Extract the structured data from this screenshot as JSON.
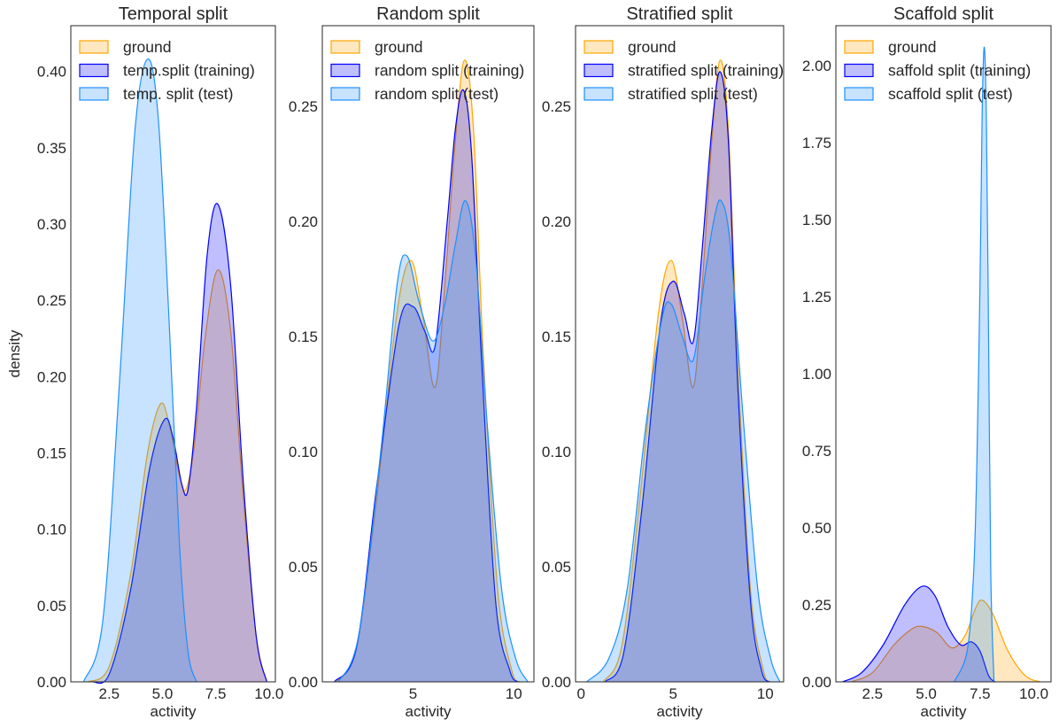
{
  "chart_data": [
    {
      "type": "area",
      "title": "Temporal split",
      "xlabel": "activity",
      "ylabel": "density",
      "xlim": [
        0.7,
        10.3
      ],
      "ylim": [
        0,
        0.43
      ],
      "xticks": [
        2.5,
        5.0,
        7.5,
        10.0
      ],
      "xtick_labels": [
        "2.5",
        "5.0",
        "7.5",
        "10.0"
      ],
      "yticks": [
        0,
        0.05,
        0.1,
        0.15,
        0.2,
        0.25,
        0.3,
        0.35,
        0.4
      ],
      "ytick_labels": [
        "0.00",
        "0.05",
        "0.10",
        "0.15",
        "0.20",
        "0.25",
        "0.30",
        "0.35",
        "0.40"
      ],
      "legend": "top-left",
      "series": [
        {
          "name": "ground",
          "color": "#FFA500",
          "points": [
            [
              1.5,
              0
            ],
            [
              2.5,
              0.01
            ],
            [
              3.5,
              0.07
            ],
            [
              4.3,
              0.15
            ],
            [
              4.9,
              0.182
            ],
            [
              5.3,
              0.17
            ],
            [
              5.8,
              0.135
            ],
            [
              6.1,
              0.126
            ],
            [
              6.5,
              0.155
            ],
            [
              7.0,
              0.225
            ],
            [
              7.6,
              0.27
            ],
            [
              8.2,
              0.23
            ],
            [
              8.8,
              0.12
            ],
            [
              9.4,
              0.03
            ],
            [
              9.9,
              0
            ]
          ]
        },
        {
          "name": "temp.split (training)",
          "color": "#0000FF",
          "points": [
            [
              1.7,
              0
            ],
            [
              2.5,
              0.005
            ],
            [
              3.5,
              0.06
            ],
            [
              4.4,
              0.14
            ],
            [
              5.1,
              0.172
            ],
            [
              5.5,
              0.16
            ],
            [
              5.9,
              0.13
            ],
            [
              6.2,
              0.126
            ],
            [
              6.6,
              0.18
            ],
            [
              7.1,
              0.28
            ],
            [
              7.6,
              0.313
            ],
            [
              8.2,
              0.26
            ],
            [
              8.8,
              0.13
            ],
            [
              9.4,
              0.03
            ],
            [
              9.9,
              0
            ]
          ]
        },
        {
          "name": "temp. split (test)",
          "color": "#1E90FF",
          "points": [
            [
              1.3,
              0
            ],
            [
              2.2,
              0.04
            ],
            [
              3.0,
              0.2
            ],
            [
              3.7,
              0.36
            ],
            [
              4.3,
              0.408
            ],
            [
              4.8,
              0.37
            ],
            [
              5.3,
              0.24
            ],
            [
              5.8,
              0.09
            ],
            [
              6.2,
              0.02
            ],
            [
              6.6,
              0
            ]
          ]
        }
      ]
    },
    {
      "type": "area",
      "title": "Random split",
      "xlabel": "activity",
      "xlim": [
        0.5,
        11.0
      ],
      "ylim": [
        0,
        0.285
      ],
      "xticks": [
        5,
        10
      ],
      "xtick_labels": [
        "5",
        "10"
      ],
      "yticks": [
        0,
        0.05,
        0.1,
        0.15,
        0.2,
        0.25
      ],
      "ytick_labels": [
        "0.00",
        "0.05",
        "0.10",
        "0.15",
        "0.20",
        "0.25"
      ],
      "legend": "top-left",
      "series": [
        {
          "name": "ground",
          "color": "#FFA500",
          "points": [
            [
              1.2,
              0
            ],
            [
              2.2,
              0.015
            ],
            [
              3.2,
              0.08
            ],
            [
              4.2,
              0.16
            ],
            [
              4.9,
              0.183
            ],
            [
              5.5,
              0.158
            ],
            [
              6.1,
              0.128
            ],
            [
              6.6,
              0.175
            ],
            [
              7.1,
              0.235
            ],
            [
              7.55,
              0.27
            ],
            [
              8.0,
              0.24
            ],
            [
              8.5,
              0.14
            ],
            [
              9.2,
              0.04
            ],
            [
              9.9,
              0.005
            ],
            [
              10.3,
              0
            ]
          ]
        },
        {
          "name": "random split (training)",
          "color": "#0000FF",
          "points": [
            [
              1.1,
              0
            ],
            [
              2.2,
              0.015
            ],
            [
              3.2,
              0.085
            ],
            [
              4.3,
              0.155
            ],
            [
              5.0,
              0.163
            ],
            [
              5.6,
              0.152
            ],
            [
              6.1,
              0.146
            ],
            [
              6.7,
              0.2
            ],
            [
              7.1,
              0.24
            ],
            [
              7.5,
              0.257
            ],
            [
              7.9,
              0.23
            ],
            [
              8.4,
              0.14
            ],
            [
              9.1,
              0.035
            ],
            [
              9.8,
              0.005
            ],
            [
              10.2,
              0
            ]
          ]
        },
        {
          "name": "random split (test)",
          "color": "#1E90FF",
          "points": [
            [
              1.3,
              0
            ],
            [
              2.3,
              0.02
            ],
            [
              3.4,
              0.1
            ],
            [
              4.2,
              0.172
            ],
            [
              4.7,
              0.185
            ],
            [
              5.3,
              0.165
            ],
            [
              6.0,
              0.148
            ],
            [
              6.6,
              0.165
            ],
            [
              7.1,
              0.19
            ],
            [
              7.6,
              0.209
            ],
            [
              8.1,
              0.185
            ],
            [
              8.7,
              0.11
            ],
            [
              9.4,
              0.04
            ],
            [
              10.1,
              0.01
            ],
            [
              10.7,
              0
            ]
          ]
        }
      ]
    },
    {
      "type": "area",
      "title": "Stratified split",
      "xlabel": "activity",
      "xlim": [
        -0.3,
        11.0
      ],
      "ylim": [
        0,
        0.285
      ],
      "xticks": [
        0,
        5,
        10
      ],
      "xtick_labels": [
        "0",
        "5",
        "10"
      ],
      "yticks": [
        0,
        0.05,
        0.1,
        0.15,
        0.2,
        0.25
      ],
      "ytick_labels": [
        "0.00",
        "0.05",
        "0.10",
        "0.15",
        "0.20",
        "0.25"
      ],
      "legend": "top-left",
      "series": [
        {
          "name": "ground",
          "color": "#FFA500",
          "points": [
            [
              1.2,
              0
            ],
            [
              2.2,
              0.015
            ],
            [
              3.2,
              0.08
            ],
            [
              4.2,
              0.16
            ],
            [
              4.9,
              0.183
            ],
            [
              5.5,
              0.158
            ],
            [
              6.1,
              0.128
            ],
            [
              6.6,
              0.175
            ],
            [
              7.1,
              0.235
            ],
            [
              7.55,
              0.27
            ],
            [
              8.0,
              0.24
            ],
            [
              8.5,
              0.14
            ],
            [
              9.2,
              0.04
            ],
            [
              9.9,
              0.005
            ],
            [
              10.3,
              0
            ]
          ]
        },
        {
          "name": "stratified split (training)",
          "color": "#0000FF",
          "points": [
            [
              1.3,
              0
            ],
            [
              2.3,
              0.012
            ],
            [
              3.3,
              0.075
            ],
            [
              4.3,
              0.155
            ],
            [
              5.0,
              0.174
            ],
            [
              5.6,
              0.16
            ],
            [
              6.1,
              0.148
            ],
            [
              6.6,
              0.19
            ],
            [
              7.1,
              0.24
            ],
            [
              7.55,
              0.265
            ],
            [
              8.0,
              0.235
            ],
            [
              8.5,
              0.13
            ],
            [
              9.2,
              0.035
            ],
            [
              9.8,
              0.005
            ],
            [
              10.2,
              0
            ]
          ]
        },
        {
          "name": "stratified split (test)",
          "color": "#1E90FF",
          "points": [
            [
              0.3,
              0
            ],
            [
              1.5,
              0.01
            ],
            [
              2.5,
              0.04
            ],
            [
              3.5,
              0.11
            ],
            [
              4.4,
              0.158
            ],
            [
              4.9,
              0.164
            ],
            [
              5.5,
              0.15
            ],
            [
              6.1,
              0.14
            ],
            [
              6.7,
              0.175
            ],
            [
              7.2,
              0.2
            ],
            [
              7.6,
              0.209
            ],
            [
              8.1,
              0.19
            ],
            [
              8.8,
              0.115
            ],
            [
              9.6,
              0.04
            ],
            [
              10.3,
              0.01
            ],
            [
              10.8,
              0
            ]
          ]
        }
      ]
    },
    {
      "type": "area",
      "title": "Scaffold split",
      "xlabel": "activity",
      "xlim": [
        0.8,
        10.8
      ],
      "ylim": [
        0,
        2.13
      ],
      "xticks": [
        2.5,
        5.0,
        7.5,
        10.0
      ],
      "xtick_labels": [
        "2.5",
        "5.0",
        "7.5",
        "10.0"
      ],
      "yticks": [
        0,
        0.25,
        0.5,
        0.75,
        1.0,
        1.25,
        1.5,
        1.75,
        2.0
      ],
      "ytick_labels": [
        "0.00",
        "0.25",
        "0.50",
        "0.75",
        "1.00",
        "1.25",
        "1.50",
        "1.75",
        "2.00"
      ],
      "legend": "top-left",
      "series": [
        {
          "name": "ground",
          "color": "#FFA500",
          "points": [
            [
              1.5,
              0
            ],
            [
              2.5,
              0.03
            ],
            [
              3.5,
              0.12
            ],
            [
              4.3,
              0.17
            ],
            [
              4.8,
              0.18
            ],
            [
              5.5,
              0.16
            ],
            [
              6.2,
              0.11
            ],
            [
              6.8,
              0.15
            ],
            [
              7.3,
              0.24
            ],
            [
              7.6,
              0.265
            ],
            [
              8.1,
              0.22
            ],
            [
              8.8,
              0.1
            ],
            [
              9.6,
              0.02
            ],
            [
              10.3,
              0
            ]
          ]
        },
        {
          "name": "saffold split (training)",
          "color": "#0000FF",
          "points": [
            [
              1.1,
              0
            ],
            [
              2.0,
              0.03
            ],
            [
              3.0,
              0.12
            ],
            [
              4.0,
              0.25
            ],
            [
              4.8,
              0.31
            ],
            [
              5.4,
              0.28
            ],
            [
              6.0,
              0.18
            ],
            [
              6.6,
              0.12
            ],
            [
              7.1,
              0.13
            ],
            [
              7.5,
              0.1
            ],
            [
              7.9,
              0.02
            ],
            [
              8.2,
              0
            ]
          ]
        },
        {
          "name": "scaffold split (test)",
          "color": "#1E90FF",
          "points": [
            [
              6.3,
              0
            ],
            [
              6.9,
              0.1
            ],
            [
              7.2,
              0.35
            ],
            [
              7.35,
              0.7
            ],
            [
              7.5,
              1.3
            ],
            [
              7.6,
              1.85
            ],
            [
              7.7,
              2.06
            ],
            [
              7.8,
              1.8
            ],
            [
              7.9,
              1.1
            ],
            [
              8.0,
              0.35
            ],
            [
              8.15,
              0
            ]
          ]
        }
      ]
    }
  ]
}
